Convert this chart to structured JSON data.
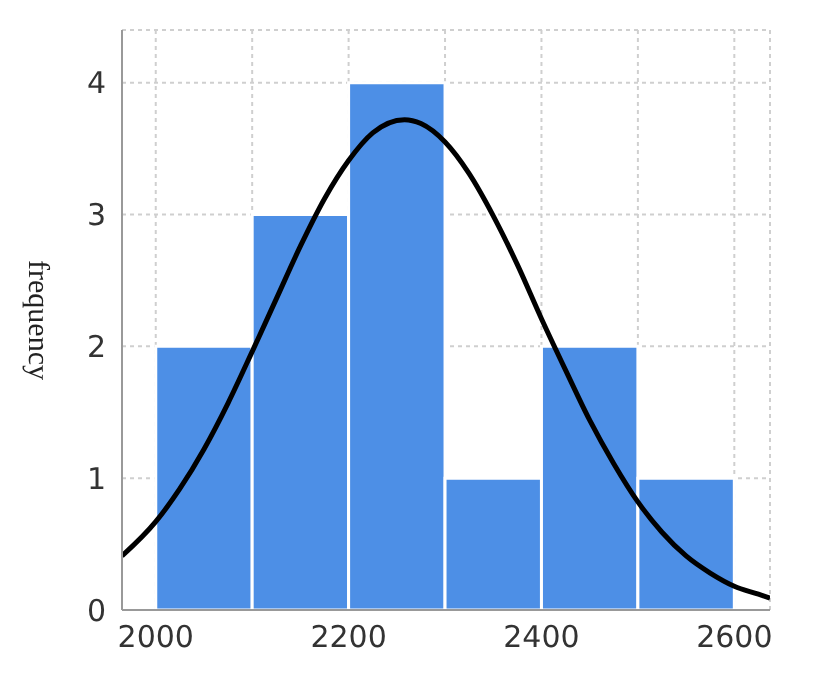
{
  "chart_data": {
    "type": "histogram",
    "ylabel": "frequency",
    "bins": [
      2000,
      2100,
      2200,
      2300,
      2400,
      2500,
      2600
    ],
    "series": [
      {
        "color": "#4d8fe6",
        "values": [
          2,
          3,
          4,
          1,
          2,
          1
        ]
      },
      {
        "type": "line",
        "color": "#000000",
        "x": [
          1965,
          2000,
          2025,
          2050,
          2075,
          2100,
          2125,
          2150,
          2175,
          2200,
          2225,
          2258,
          2275,
          2300,
          2325,
          2350,
          2375,
          2400,
          2425,
          2450,
          2475,
          2500,
          2525,
          2550,
          2575,
          2600,
          2625,
          2637
        ],
        "values": [
          0.41,
          0.67,
          0.92,
          1.22,
          1.57,
          1.96,
          2.36,
          2.76,
          3.12,
          3.41,
          3.62,
          3.72,
          3.69,
          3.55,
          3.31,
          2.99,
          2.62,
          2.21,
          1.82,
          1.44,
          1.11,
          0.82,
          0.59,
          0.41,
          0.28,
          0.18,
          0.12,
          0.09
        ]
      }
    ],
    "xlim": [
      1965,
      2637
    ],
    "xticks": [
      2000,
      {
        "value": 2100,
        "label": null
      },
      2200,
      {
        "value": 2300,
        "label": null
      },
      2400,
      {
        "value": 2500,
        "label": null
      },
      2600
    ],
    "ylim": [
      0,
      4.4
    ],
    "yticks": [
      0,
      1,
      2,
      3,
      4
    ],
    "grid": true,
    "marker": "none",
    "line_style": "solid"
  }
}
